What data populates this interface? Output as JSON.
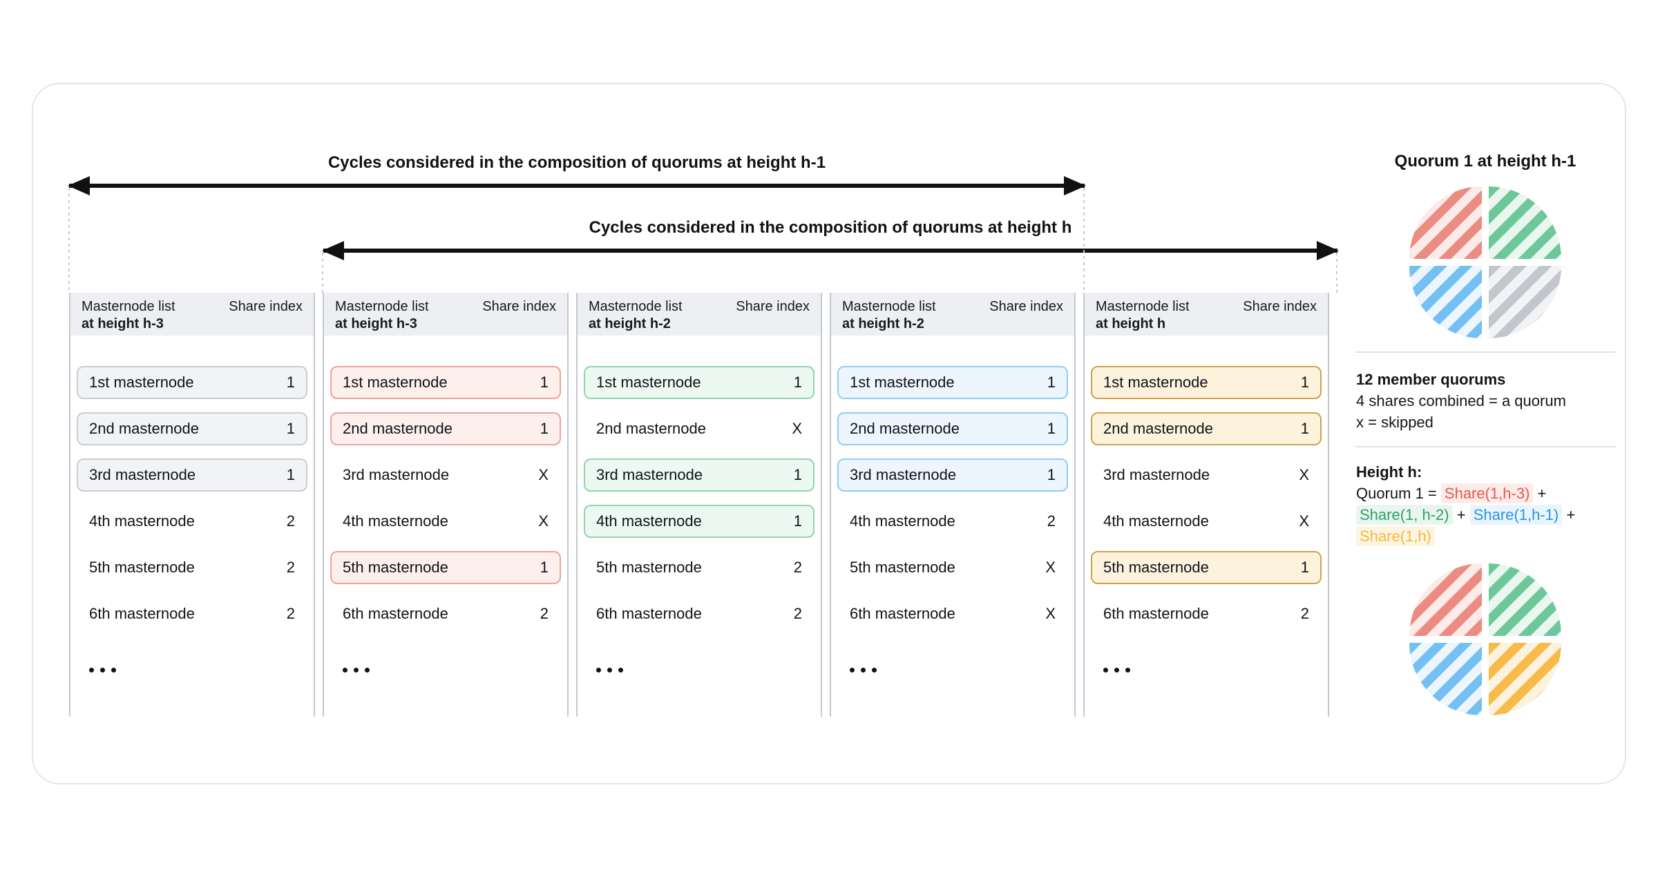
{
  "arrows": {
    "h1": {
      "label": "Cycles considered in the composition of quorums at height h-1"
    },
    "h": {
      "label": "Cycles considered in the composition of quorums at height h"
    }
  },
  "table": {
    "columns": [
      {
        "header_line1": "Masternode list",
        "header_line2": "at height h-3",
        "share_header": "Share index",
        "accent": "gray",
        "rows": [
          {
            "name": "1st masternode",
            "index": "1",
            "boxed": true
          },
          {
            "name": "2nd masternode",
            "index": "1",
            "boxed": true
          },
          {
            "name": "3rd masternode",
            "index": "1",
            "boxed": true
          },
          {
            "name": "4th masternode",
            "index": "2",
            "boxed": false
          },
          {
            "name": "5th masternode",
            "index": "2",
            "boxed": false
          },
          {
            "name": "6th masternode",
            "index": "2",
            "boxed": false
          }
        ]
      },
      {
        "header_line1": "Masternode list",
        "header_line2": "at height h-3",
        "share_header": "Share index",
        "accent": "red",
        "rows": [
          {
            "name": "1st masternode",
            "index": "1",
            "boxed": true
          },
          {
            "name": "2nd masternode",
            "index": "1",
            "boxed": true
          },
          {
            "name": "3rd masternode",
            "index": "X",
            "boxed": false
          },
          {
            "name": "4th masternode",
            "index": "X",
            "boxed": false
          },
          {
            "name": "5th masternode",
            "index": "1",
            "boxed": true
          },
          {
            "name": "6th masternode",
            "index": "2",
            "boxed": false
          }
        ]
      },
      {
        "header_line1": "Masternode list",
        "header_line2": "at height h-2",
        "share_header": "Share index",
        "accent": "green",
        "rows": [
          {
            "name": "1st masternode",
            "index": "1",
            "boxed": true
          },
          {
            "name": "2nd masternode",
            "index": "X",
            "boxed": false
          },
          {
            "name": "3rd masternode",
            "index": "1",
            "boxed": true
          },
          {
            "name": "4th masternode",
            "index": "1",
            "boxed": true
          },
          {
            "name": "5th masternode",
            "index": "2",
            "boxed": false
          },
          {
            "name": "6th masternode",
            "index": "2",
            "boxed": false
          }
        ]
      },
      {
        "header_line1": "Masternode list",
        "header_line2": "at height h-2",
        "share_header": "Share index",
        "accent": "blue",
        "rows": [
          {
            "name": "1st masternode",
            "index": "1",
            "boxed": true
          },
          {
            "name": "2nd masternode",
            "index": "1",
            "boxed": true
          },
          {
            "name": "3rd masternode",
            "index": "1",
            "boxed": true
          },
          {
            "name": "4th masternode",
            "index": "2",
            "boxed": false
          },
          {
            "name": "5th masternode",
            "index": "X",
            "boxed": false
          },
          {
            "name": "6th masternode",
            "index": "X",
            "boxed": false
          }
        ]
      },
      {
        "header_line1": "Masternode list",
        "header_line2": "at height h",
        "share_header": "Share index",
        "accent": "yellow",
        "rows": [
          {
            "name": "1st masternode",
            "index": "1",
            "boxed": true
          },
          {
            "name": "2nd masternode",
            "index": "1",
            "boxed": true
          },
          {
            "name": "3rd masternode",
            "index": "X",
            "boxed": false
          },
          {
            "name": "4th masternode",
            "index": "X",
            "boxed": false
          },
          {
            "name": "5th masternode",
            "index": "1",
            "boxed": true
          },
          {
            "name": "6th masternode",
            "index": "2",
            "boxed": false
          }
        ]
      }
    ]
  },
  "legend": {
    "title": "Quorum 1 at height h-1",
    "notes": [
      "12 member quorums",
      "4 shares combined = a quorum",
      "x = skipped"
    ],
    "height_label": "Height h:",
    "formula": {
      "prefix": "Quorum 1 =",
      "plus": "+",
      "terms": [
        {
          "text": "Share(1,h-3)",
          "accent": "red"
        },
        {
          "text": "Share(1, h-2)",
          "accent": "green"
        },
        {
          "text": "Share(1,h-1)",
          "accent": "blue"
        },
        {
          "text": "Share(1,h)",
          "accent": "yellow"
        }
      ]
    },
    "pies": {
      "top": [
        "red",
        "green",
        "blue",
        "gray"
      ],
      "bottom": [
        "red",
        "green",
        "blue",
        "yellow"
      ]
    }
  },
  "colors": {
    "red": {
      "box_bg": "#fdefec",
      "box_border": "#f0a198",
      "stripe": "#eb8c82",
      "stripe_bg": "#fcebe8",
      "text": "#e45a4e"
    },
    "green": {
      "box_bg": "#ecf9f2",
      "box_border": "#8fd4ae",
      "stripe": "#6ec79b",
      "stripe_bg": "#e9f7ef",
      "text": "#2da167"
    },
    "blue": {
      "box_bg": "#eef6fd",
      "box_border": "#8ecdf5",
      "stripe": "#74c0f3",
      "stripe_bg": "#edf6fd",
      "text": "#2596e4"
    },
    "yellow": {
      "box_bg": "#fdf3dd",
      "box_border": "#cfa14a",
      "stripe": "#f8bb49",
      "stripe_bg": "#fdf2de",
      "text": "#f5b940"
    },
    "gray": {
      "box_bg": "#f2f3f5",
      "box_border": "#c9ccd3",
      "stripe": "#c3c6cc",
      "stripe_bg": "#f2f3f5"
    },
    "arrow": "#111111",
    "header_bg": "#edeff2",
    "column_border": "#c4c8cf"
  }
}
